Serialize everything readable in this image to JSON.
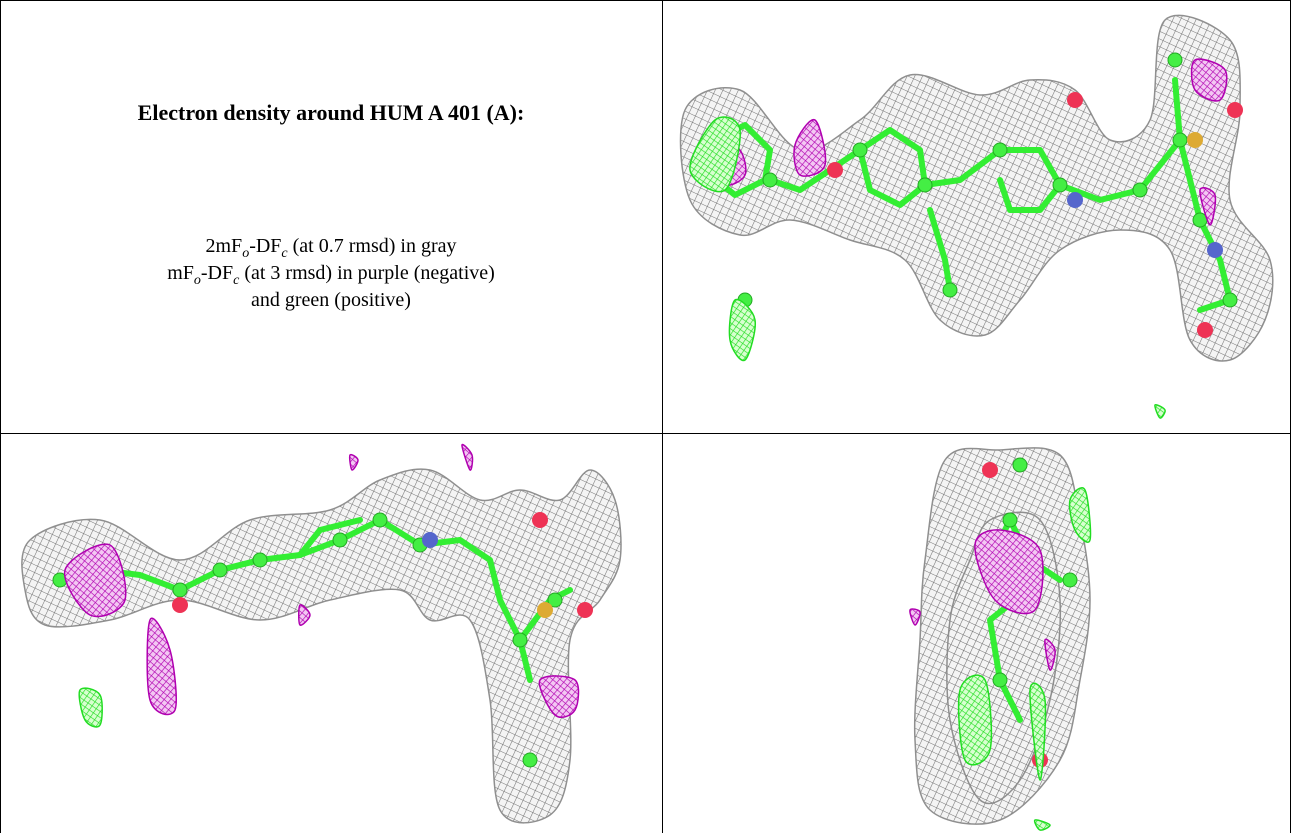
{
  "caption": {
    "title": "Electron density around HUM A 401 (A):",
    "line1": {
      "pre": "2mF",
      "sub1": "o",
      "mid": "-DF",
      "sub2": "c",
      "post": " (at 0.7 rmsd) in gray"
    },
    "line2": {
      "pre": "mF",
      "sub1": "o",
      "mid": "-DF",
      "sub2": "c",
      "post": " (at 3 rmsd) in purple (negative)"
    },
    "line3": "and green (positive)"
  }
}
